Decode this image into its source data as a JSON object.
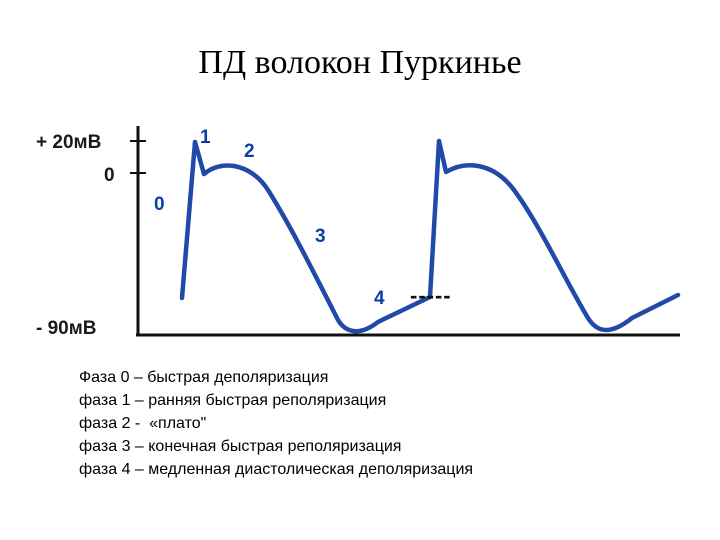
{
  "title": "ПД волокон Пуркинье",
  "axis": {
    "top_label": "+ 20мВ",
    "zero_label": "0",
    "bottom_label": "- 90мВ"
  },
  "phase_numbers": [
    "0",
    "1",
    "2",
    "3",
    "4"
  ],
  "threshold_dashes": "-----",
  "legend": [
    "Фаза 0 – быстрая деполяризация",
    "фаза 1 – ранняя быстрая реполяризация",
    "фаза 2 -  «плато\"",
    "фаза 3 – конечная быстрая реполяризация",
    "фаза 4 – медленная диастолическая деполяризация"
  ],
  "colors": {
    "trace": "#1f4aa8",
    "axis": "#111111",
    "phase_label": "#0a3fa6"
  }
}
